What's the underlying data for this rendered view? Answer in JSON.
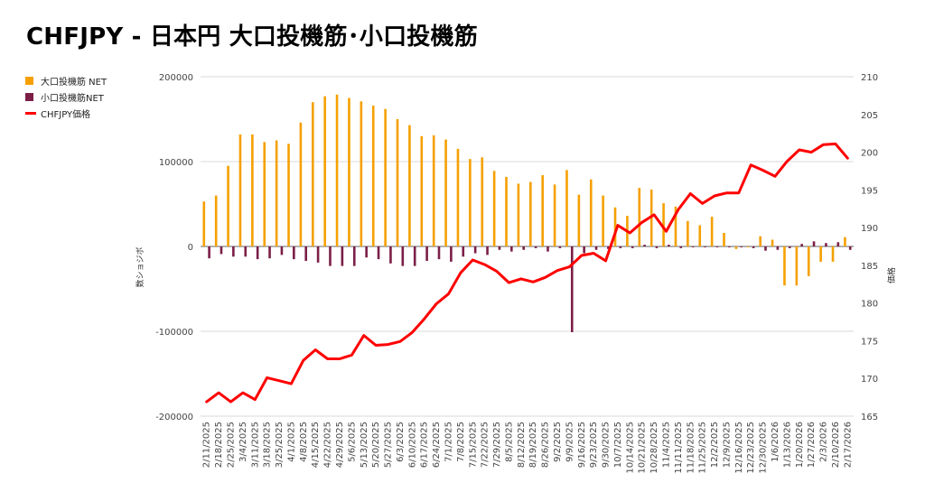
{
  "title": "CHFJPY - 日本円 大口投機筋･小口投機筋",
  "colors": {
    "large": "#F5A000",
    "small": "#7B1F47",
    "price": "#FF0000",
    "grid": "#d9d9d9"
  },
  "chart_data": {
    "type": "bar",
    "title": "CHFJPY - 日本円 大口投機筋･小口投機筋",
    "ylabel_left": "数ショジボ",
    "ylabel_right": "価格",
    "ylim_left": [
      -200000,
      200000
    ],
    "ylim_right": [
      165,
      210
    ],
    "left_ticks": [
      "200000",
      "100000",
      "0",
      "-100000",
      "-200000"
    ],
    "right_ticks": [
      "210",
      "205",
      "200",
      "195",
      "190",
      "185",
      "180",
      "175",
      "170",
      "165"
    ],
    "legend_position": "top-left",
    "grid": true,
    "categories": [
      "2/11/2025",
      "2/18/2025",
      "2/25/2025",
      "3/4/2025",
      "3/11/2025",
      "3/18/2025",
      "3/25/2025",
      "4/1/2025",
      "4/8/2025",
      "4/15/2025",
      "4/22/2025",
      "4/29/2025",
      "5/6/2025",
      "5/13/2025",
      "5/20/2025",
      "5/27/2025",
      "6/3/2025",
      "6/10/2025",
      "6/17/2025",
      "6/24/2025",
      "7/1/2025",
      "7/8/2025",
      "7/15/2025",
      "7/22/2025",
      "7/29/2025",
      "8/5/2025",
      "8/12/2025",
      "8/19/2025",
      "8/26/2025",
      "9/2/2025",
      "9/9/2025",
      "9/16/2025",
      "9/23/2025",
      "9/30/2025",
      "10/7/2025",
      "10/14/2025",
      "10/21/2025",
      "10/28/2025",
      "11/4/2025",
      "11/11/2025",
      "11/18/2025",
      "11/25/2025",
      "12/2/2025",
      "12/9/2025",
      "12/16/2025",
      "12/23/2025",
      "12/30/2025",
      "1/6/2026",
      "1/13/2026",
      "1/20/2026",
      "1/27/2026",
      "2/3/2026",
      "2/10/2026",
      "2/17/2026"
    ],
    "series": [
      {
        "name": "大口投機筋  NET",
        "kind": "bar",
        "values": [
          53000,
          60000,
          95000,
          132000,
          132000,
          123000,
          125000,
          121000,
          146000,
          170000,
          177000,
          179000,
          175000,
          171000,
          166000,
          162000,
          150000,
          143000,
          130000,
          131000,
          126000,
          115000,
          103000,
          105000,
          89000,
          82000,
          74000,
          76000,
          84000,
          73000,
          90000,
          61000,
          79000,
          60000,
          46000,
          36000,
          69000,
          67000,
          51000,
          47000,
          30000,
          25000,
          35000,
          16000,
          -3000,
          -1000,
          12000,
          8000,
          -46000,
          -46000,
          -35000,
          -18000,
          -18000,
          11000
        ]
      },
      {
        "name": "小口投機筋NET",
        "kind": "bar",
        "values": [
          -14000,
          -9000,
          -12000,
          -12000,
          -15000,
          -14000,
          -10000,
          -15000,
          -17000,
          -19000,
          -23000,
          -23000,
          -23000,
          -13000,
          -15000,
          -20000,
          -23000,
          -23000,
          -17000,
          -15000,
          -18000,
          -12000,
          -8000,
          -10000,
          -4000,
          -6000,
          -4000,
          -2000,
          -6000,
          -2000,
          -101000,
          -8000,
          -4000,
          -3000,
          -2000,
          -2000,
          2000,
          -2000,
          2000,
          -2000,
          -1000,
          -1000,
          -1000,
          -1000,
          -1000,
          -2000,
          -5000,
          -4000,
          -2000,
          3000,
          6000,
          4000,
          5000,
          -4000
        ]
      },
      {
        "name": "CHFJPY価格",
        "kind": "line",
        "values": [
          166.9,
          168.1,
          166.9,
          168.1,
          167.2,
          170.1,
          169.7,
          169.3,
          172.4,
          173.8,
          172.6,
          172.6,
          173.1,
          175.7,
          174.4,
          174.5,
          174.9,
          176.1,
          177.9,
          179.9,
          181.2,
          184.0,
          185.7,
          185.1,
          184.2,
          182.7,
          183.2,
          182.8,
          183.4,
          184.3,
          184.8,
          186.3,
          186.6,
          185.6,
          190.3,
          189.3,
          190.7,
          191.7,
          189.5,
          192.4,
          194.5,
          193.2,
          194.2,
          194.6,
          194.6,
          198.3,
          197.6,
          196.8,
          198.8,
          200.3,
          200.0,
          201.0,
          201.1,
          199.2
        ]
      }
    ]
  }
}
